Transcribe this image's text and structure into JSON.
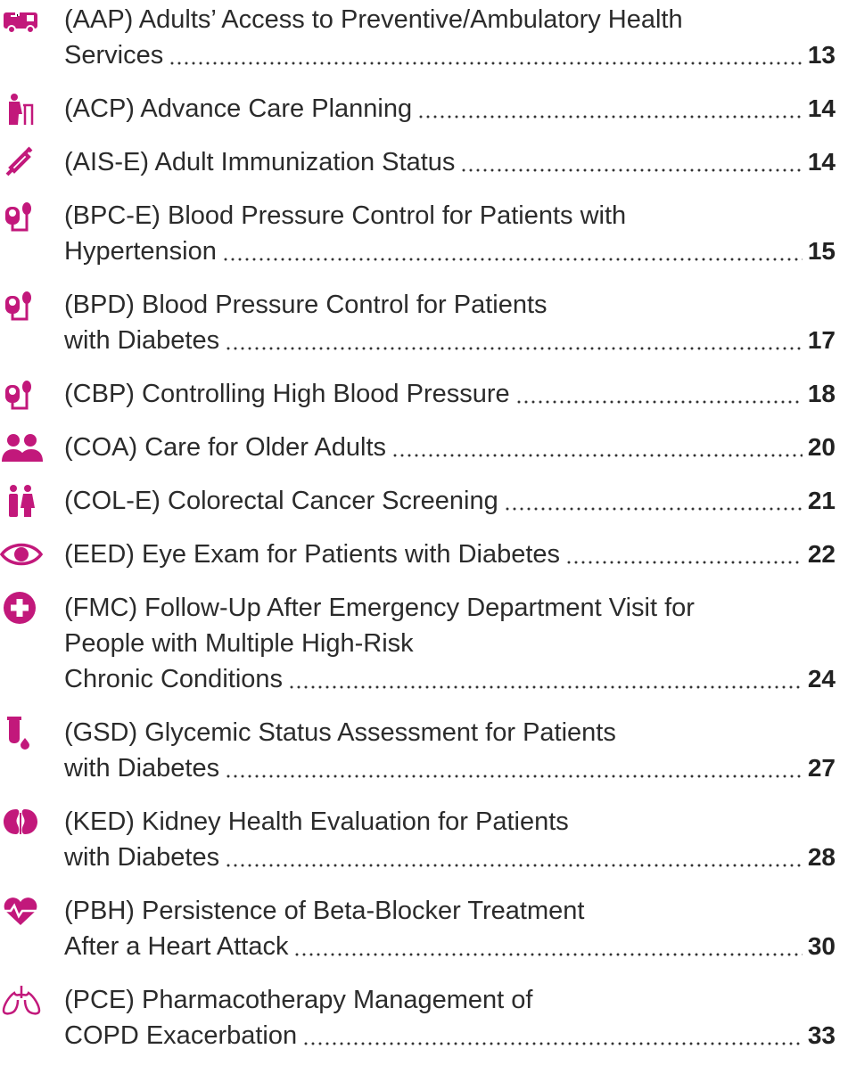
{
  "entries": [
    {
      "lines": [
        "(AAP) Adults’ Access to Preventive/Ambulatory Health",
        "Services"
      ],
      "page": "13"
    },
    {
      "lines": [
        "(ACP) Advance Care Planning"
      ],
      "page": "14"
    },
    {
      "lines": [
        "(AIS-E) Adult Immunization Status"
      ],
      "page": "14"
    },
    {
      "lines": [
        "(BPC-E) Blood Pressure Control for Patients with",
        "Hypertension"
      ],
      "page": "15"
    },
    {
      "lines": [
        "(BPD) Blood Pressure Control for Patients",
        "with Diabetes"
      ],
      "page": "17"
    },
    {
      "lines": [
        "(CBP) Controlling High Blood Pressure"
      ],
      "page": "18"
    },
    {
      "lines": [
        "(COA) Care for Older Adults"
      ],
      "page": "20"
    },
    {
      "lines": [
        "(COL-E) Colorectal Cancer Screening"
      ],
      "page": "21"
    },
    {
      "lines": [
        "(EED) Eye Exam for Patients with Diabetes"
      ],
      "page": "22"
    },
    {
      "lines": [
        "(FMC) Follow-Up After Emergency Department Visit for",
        "People with Multiple High-Risk",
        "Chronic Conditions"
      ],
      "page": "24"
    },
    {
      "lines": [
        "(GSD) Glycemic Status Assessment for Patients",
        "with Diabetes"
      ],
      "page": "27"
    },
    {
      "lines": [
        "(KED) Kidney Health Evaluation for Patients",
        "with Diabetes"
      ],
      "page": "28"
    },
    {
      "lines": [
        "(PBH) Persistence of Beta-Blocker Treatment",
        "After a Heart Attack"
      ],
      "page": "30"
    },
    {
      "lines": [
        "(PCE) Pharmacotherapy Management of",
        "COPD Exacerbation"
      ],
      "page": "33"
    }
  ]
}
